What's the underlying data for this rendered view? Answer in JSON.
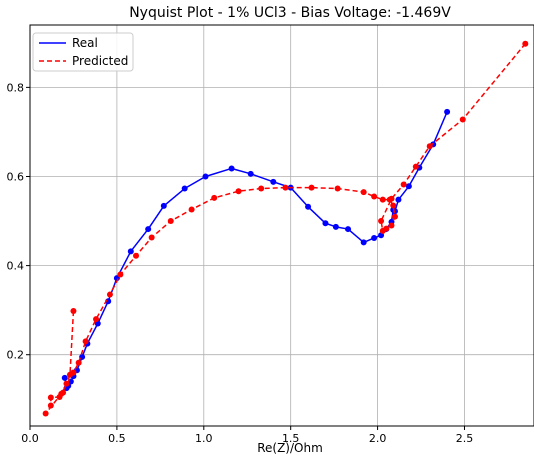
{
  "chart_data": {
    "type": "line",
    "title": "Nyquist Plot - 1% UCl3 - Bias Voltage: -1.469V",
    "xlabel": "Re(Z)/Ohm",
    "ylabel": "",
    "xlim": [
      0.0,
      2.9
    ],
    "ylim": [
      0.04,
      0.94
    ],
    "xticks": [
      0.0,
      0.5,
      1.0,
      1.5,
      2.0,
      2.5
    ],
    "xtick_labels": [
      "0.0",
      "0.5",
      "1.0",
      "1.5",
      "2.0",
      "2.5"
    ],
    "yticks": [
      0.2,
      0.4,
      0.6,
      0.8
    ],
    "ytick_labels": [
      "0.2",
      "0.4",
      "0.6",
      "0.8"
    ],
    "grid": true,
    "legend_position": "top-left",
    "series": [
      {
        "name": "Real",
        "color": "#0000ff",
        "linestyle": "solid",
        "points": [
          [
            0.2,
            0.148
          ],
          [
            0.21,
            0.125
          ],
          [
            0.22,
            0.13
          ],
          [
            0.235,
            0.14
          ],
          [
            0.25,
            0.152
          ],
          [
            0.27,
            0.165
          ],
          [
            0.3,
            0.195
          ],
          [
            0.33,
            0.225
          ],
          [
            0.39,
            0.27
          ],
          [
            0.45,
            0.32
          ],
          [
            0.5,
            0.372
          ],
          [
            0.58,
            0.432
          ],
          [
            0.68,
            0.482
          ],
          [
            0.77,
            0.534
          ],
          [
            0.89,
            0.573
          ],
          [
            1.01,
            0.6
          ],
          [
            1.16,
            0.618
          ],
          [
            1.27,
            0.606
          ],
          [
            1.4,
            0.588
          ],
          [
            1.5,
            0.575
          ],
          [
            1.6,
            0.532
          ],
          [
            1.7,
            0.495
          ],
          [
            1.76,
            0.487
          ],
          [
            1.83,
            0.482
          ],
          [
            1.92,
            0.452
          ],
          [
            1.98,
            0.462
          ],
          [
            2.02,
            0.468
          ],
          [
            2.05,
            0.482
          ],
          [
            2.08,
            0.498
          ],
          [
            2.09,
            0.525
          ],
          [
            2.1,
            0.522
          ],
          [
            2.12,
            0.548
          ],
          [
            2.18,
            0.578
          ],
          [
            2.24,
            0.62
          ],
          [
            2.32,
            0.672
          ],
          [
            2.4,
            0.745
          ]
        ]
      },
      {
        "name": "Predicted",
        "color": "#ff0000",
        "linestyle": "dashed",
        "points": [
          [
            0.25,
            0.298
          ],
          [
            0.23,
            0.155
          ],
          [
            0.21,
            0.135
          ],
          [
            0.19,
            0.115
          ],
          [
            0.17,
            0.105
          ],
          [
            0.12,
            0.104
          ],
          [
            0.12,
            0.086
          ],
          [
            0.09,
            0.068
          ],
          [
            0.18,
            0.112
          ],
          [
            0.25,
            0.16
          ],
          [
            0.28,
            0.182
          ],
          [
            0.32,
            0.23
          ],
          [
            0.38,
            0.28
          ],
          [
            0.46,
            0.335
          ],
          [
            0.52,
            0.38
          ],
          [
            0.61,
            0.422
          ],
          [
            0.7,
            0.463
          ],
          [
            0.81,
            0.5
          ],
          [
            0.93,
            0.526
          ],
          [
            1.06,
            0.552
          ],
          [
            1.2,
            0.567
          ],
          [
            1.33,
            0.573
          ],
          [
            1.47,
            0.575
          ],
          [
            1.62,
            0.575
          ],
          [
            1.77,
            0.573
          ],
          [
            1.92,
            0.565
          ],
          [
            1.98,
            0.555
          ],
          [
            2.03,
            0.548
          ],
          [
            2.07,
            0.548
          ],
          [
            2.09,
            0.535
          ],
          [
            2.1,
            0.51
          ],
          [
            2.08,
            0.49
          ],
          [
            2.05,
            0.483
          ],
          [
            2.03,
            0.478
          ],
          [
            2.02,
            0.5
          ],
          [
            2.08,
            0.55
          ],
          [
            2.15,
            0.582
          ],
          [
            2.22,
            0.622
          ],
          [
            2.3,
            0.668
          ],
          [
            2.49,
            0.728
          ],
          [
            2.85,
            0.898
          ]
        ]
      }
    ]
  }
}
